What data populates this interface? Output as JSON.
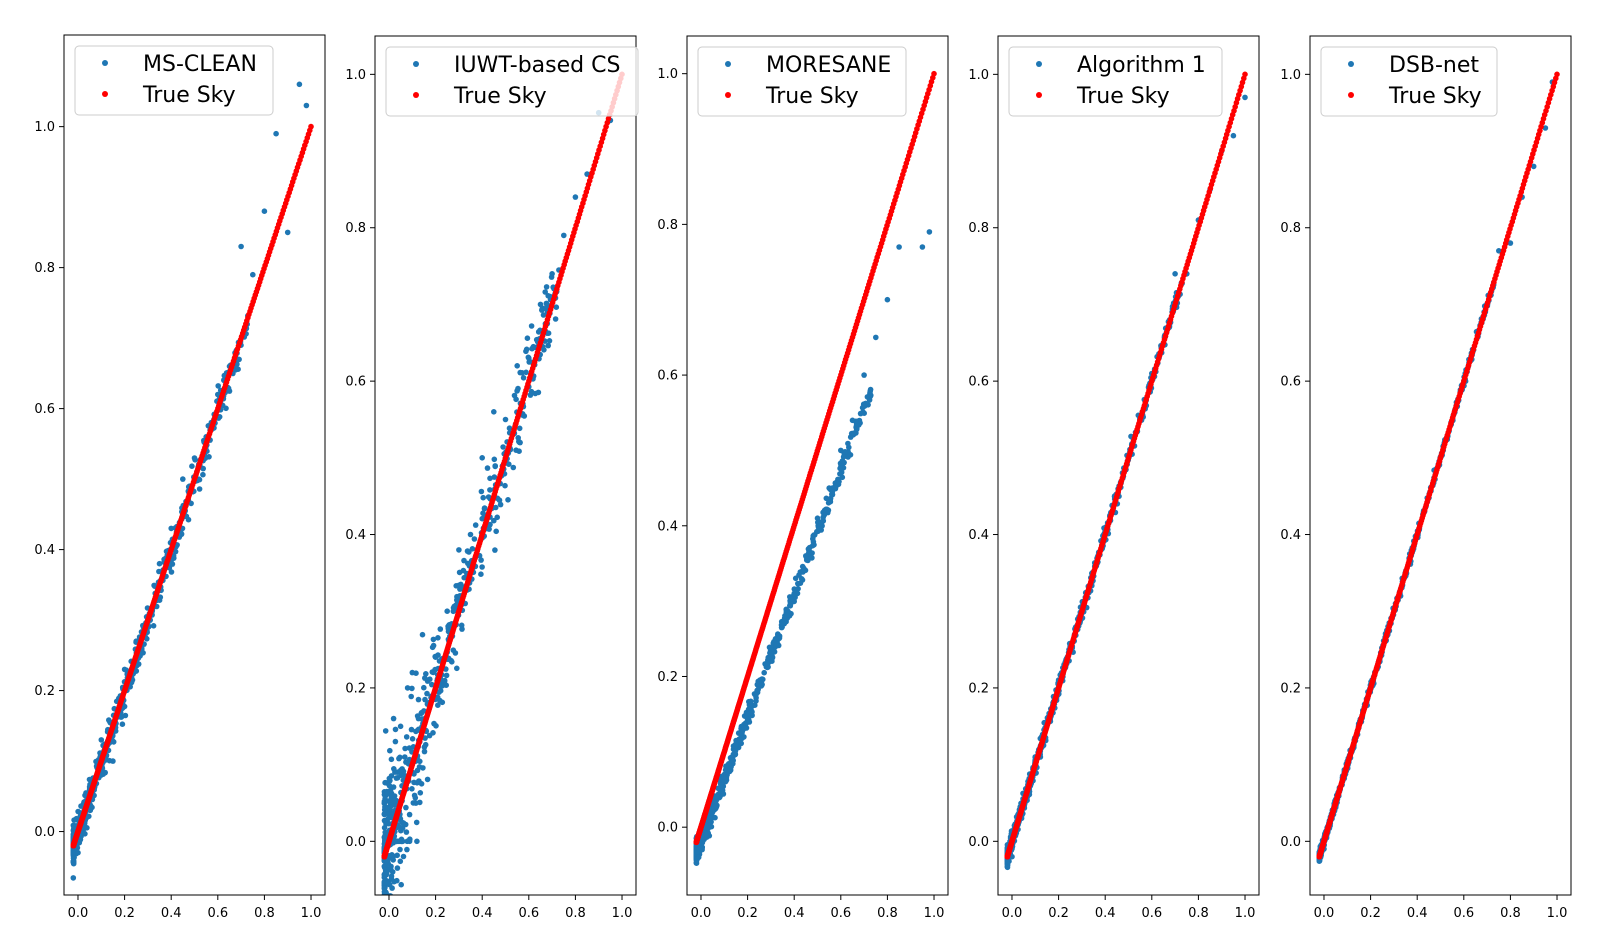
{
  "figure": {
    "type": "scatter",
    "series_colors": {
      "estimate": "#1f77b4",
      "truth": "#ff0000"
    }
  },
  "chart_data": [
    {
      "type": "scatter",
      "legend": [
        "MS-CLEAN",
        "True Sky"
      ],
      "xlim": [
        -0.06,
        1.06
      ],
      "ylim": [
        -0.09,
        1.13
      ],
      "xticks": [
        "0.0",
        "0.2",
        "0.4",
        "0.6",
        "0.8",
        "1.0"
      ],
      "yticks": [
        "0.0",
        "0.2",
        "0.4",
        "0.6",
        "0.8",
        "1.0"
      ],
      "true_sky": {
        "x_range": [
          -0.02,
          1.0
        ],
        "y_equals_x": true
      },
      "estimate_sample": {
        "x": [
          0.0,
          0.05,
          0.1,
          0.15,
          0.2,
          0.25,
          0.3,
          0.35,
          0.4,
          0.45,
          0.5,
          0.55,
          0.6,
          0.65,
          0.7,
          0.75,
          0.8,
          0.85,
          0.9,
          0.95,
          0.98
        ],
        "y": [
          -0.03,
          0.06,
          0.13,
          0.1,
          0.23,
          0.27,
          0.3,
          0.38,
          0.43,
          0.5,
          0.53,
          0.56,
          0.62,
          0.66,
          0.83,
          0.79,
          0.88,
          0.99,
          0.85,
          1.06,
          1.03
        ]
      }
    },
    {
      "type": "scatter",
      "legend": [
        "IUWT-based CS",
        "True Sky"
      ],
      "xlim": [
        -0.06,
        1.06
      ],
      "ylim": [
        -0.07,
        1.05
      ],
      "xticks": [
        "0.0",
        "0.2",
        "0.4",
        "0.6",
        "0.8",
        "1.0"
      ],
      "yticks": [
        "0.0",
        "0.2",
        "0.4",
        "0.6",
        "0.8",
        "1.0"
      ],
      "true_sky": {
        "x_range": [
          -0.02,
          1.0
        ],
        "y_equals_x": true
      },
      "estimate_sample": {
        "x": [
          0.0,
          0.02,
          0.05,
          0.08,
          0.1,
          0.12,
          0.15,
          0.2,
          0.25,
          0.3,
          0.35,
          0.4,
          0.45,
          0.5,
          0.55,
          0.6,
          0.65,
          0.7,
          0.75,
          0.8,
          0.85,
          0.9,
          0.95
        ],
        "y": [
          0.0,
          0.16,
          0.15,
          0.2,
          0.22,
          0.0,
          0.17,
          0.24,
          0.3,
          0.38,
          0.4,
          0.5,
          0.56,
          0.55,
          0.62,
          0.63,
          0.7,
          0.74,
          0.79,
          0.84,
          0.87,
          0.95,
          0.94
        ]
      }
    },
    {
      "type": "scatter",
      "legend": [
        "MORESANE",
        "True Sky"
      ],
      "xlim": [
        -0.06,
        1.06
      ],
      "ylim": [
        -0.09,
        1.05
      ],
      "xticks": [
        "0.0",
        "0.2",
        "0.4",
        "0.6",
        "0.8",
        "1.0"
      ],
      "yticks": [
        "0.0",
        "0.2",
        "0.4",
        "0.6",
        "0.8",
        "1.0"
      ],
      "true_sky": {
        "x_range": [
          -0.02,
          1.0
        ],
        "y_equals_x": true
      },
      "estimate_sample": {
        "x": [
          -0.01,
          0.05,
          0.1,
          0.15,
          0.2,
          0.25,
          0.3,
          0.35,
          0.4,
          0.45,
          0.5,
          0.55,
          0.6,
          0.65,
          0.7,
          0.75,
          0.8,
          0.85,
          0.95,
          0.98
        ],
        "y": [
          -0.04,
          0.02,
          0.06,
          0.11,
          0.15,
          0.19,
          0.23,
          0.27,
          0.31,
          0.36,
          0.41,
          0.45,
          0.5,
          0.54,
          0.6,
          0.65,
          0.7,
          0.77,
          0.77,
          0.79
        ]
      }
    },
    {
      "type": "scatter",
      "legend": [
        "Algorithm 1",
        "True Sky"
      ],
      "xlim": [
        -0.06,
        1.06
      ],
      "ylim": [
        -0.07,
        1.05
      ],
      "xticks": [
        "0.0",
        "0.2",
        "0.4",
        "0.6",
        "0.8",
        "1.0"
      ],
      "yticks": [
        "0.0",
        "0.2",
        "0.4",
        "0.6",
        "0.8",
        "1.0"
      ],
      "true_sky": {
        "x_range": [
          -0.02,
          1.0
        ],
        "y_equals_x": true
      },
      "estimate_sample": {
        "x": [
          0.0,
          0.05,
          0.1,
          0.2,
          0.3,
          0.4,
          0.5,
          0.6,
          0.65,
          0.7,
          0.75,
          0.8,
          0.85,
          0.9,
          0.95,
          1.0
        ],
        "y": [
          -0.02,
          0.05,
          0.11,
          0.2,
          0.3,
          0.4,
          0.5,
          0.61,
          0.65,
          0.74,
          0.74,
          0.81,
          0.85,
          0.9,
          0.92,
          0.97
        ]
      }
    },
    {
      "type": "scatter",
      "legend": [
        "DSB-net",
        "True Sky"
      ],
      "xlim": [
        -0.06,
        1.06
      ],
      "ylim": [
        -0.07,
        1.05
      ],
      "xticks": [
        "0.0",
        "0.2",
        "0.4",
        "0.6",
        "0.8",
        "1.0"
      ],
      "yticks": [
        "0.0",
        "0.2",
        "0.4",
        "0.6",
        "0.8",
        "1.0"
      ],
      "true_sky": {
        "x_range": [
          -0.02,
          1.0
        ],
        "y_equals_x": true
      },
      "estimate_sample": {
        "x": [
          0.0,
          0.1,
          0.2,
          0.3,
          0.4,
          0.5,
          0.6,
          0.7,
          0.75,
          0.8,
          0.85,
          0.9,
          0.95,
          0.98
        ],
        "y": [
          -0.01,
          0.1,
          0.2,
          0.3,
          0.4,
          0.5,
          0.6,
          0.7,
          0.77,
          0.78,
          0.84,
          0.88,
          0.93,
          0.99
        ]
      }
    }
  ]
}
